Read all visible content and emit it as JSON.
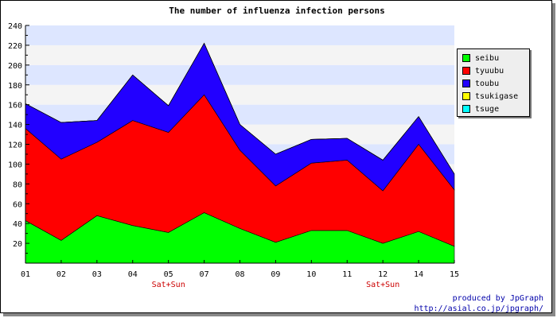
{
  "chart_data": {
    "type": "area",
    "stacked": true,
    "title": "The number of influenza infection persons",
    "xlabel": "",
    "ylabel": "",
    "categories": [
      "01",
      "02",
      "03",
      "04",
      "05",
      "07",
      "08",
      "09",
      "10",
      "11",
      "12",
      "14",
      "15"
    ],
    "sublabels": [
      {
        "category": "05",
        "text": "Sat+Sun"
      },
      {
        "category": "12",
        "text": "Sat+Sun"
      }
    ],
    "ylim": [
      0,
      240
    ],
    "yticks": [
      20,
      40,
      60,
      80,
      100,
      120,
      140,
      160,
      180,
      200,
      220,
      240
    ],
    "grid": "horizontal-bands",
    "legend_position": "right",
    "series": [
      {
        "name": "seibu",
        "color": "#00ff00",
        "values": [
          43,
          23,
          48,
          38,
          31,
          51,
          35,
          21,
          33,
          33,
          20,
          32,
          17
        ]
      },
      {
        "name": "tyuubu",
        "color": "#ff0000",
        "values": [
          93,
          82,
          74,
          106,
          101,
          119,
          79,
          57,
          68,
          71,
          53,
          88,
          57
        ]
      },
      {
        "name": "toubu",
        "color": "#2200ff",
        "values": [
          25,
          37,
          22,
          46,
          27,
          52,
          26,
          32,
          24,
          22,
          31,
          28,
          16
        ]
      },
      {
        "name": "tsukigase",
        "color": "#ffff00",
        "values": [
          0,
          0,
          0,
          0,
          0,
          0,
          0,
          0,
          0,
          0,
          0,
          0,
          0
        ]
      },
      {
        "name": "tsuge",
        "color": "#00ffff",
        "values": [
          0,
          0,
          0,
          0,
          0,
          0,
          0,
          0,
          0,
          0,
          0,
          0,
          0
        ]
      }
    ]
  },
  "colors": {
    "band_blue": "#dde6ff",
    "band_gray": "#f4f4f4",
    "sublabel": "#cc0000"
  },
  "credit": {
    "line1": "produced by JpGraph",
    "line2": "http://asial.co.jp/jpgraph/"
  }
}
